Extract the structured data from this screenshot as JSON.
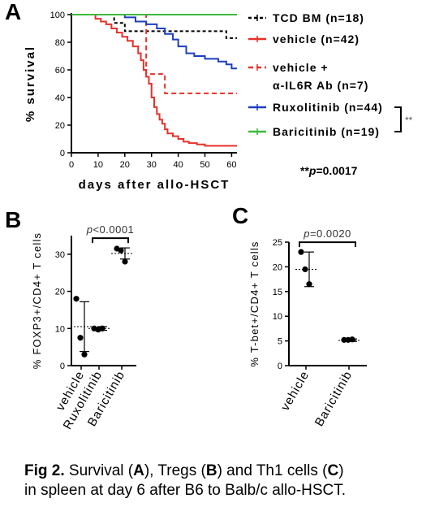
{
  "caption": {
    "fig": "Fig 2.",
    "t1": " Survival (",
    "t2": "), Tregs (",
    "t3": ") and Th1 cells (",
    "t4": ")",
    "line2": "in spleen at day 6 after B6 to Balb/c allo-HSCT."
  },
  "chart_data": [
    {
      "panel": "A",
      "type": "line",
      "step": true,
      "xlabel": "days after allo-HSCT",
      "ylabel": "% survival",
      "xlim": [
        0,
        62
      ],
      "ylim": [
        0,
        100
      ],
      "xticks": [
        0,
        10,
        20,
        30,
        40,
        50,
        60
      ],
      "yticks": [
        0,
        20,
        40,
        60,
        80,
        100
      ],
      "significance": {
        "label": "**",
        "note": "**p=0.0017"
      },
      "series": [
        {
          "name": "TCD BM (n=18)",
          "color": "#000000",
          "dash": "4,3",
          "x": [
            0,
            16,
            16,
            20,
            20,
            32,
            32,
            58,
            58,
            62
          ],
          "y": [
            100,
            100,
            94,
            94,
            88,
            88,
            88,
            88,
            83,
            83
          ]
        },
        {
          "name": "vehicle (n=42)",
          "color": "#e8302a",
          "dash": "",
          "x": [
            0,
            9,
            11,
            13,
            15,
            17,
            19,
            21,
            23,
            25,
            26,
            27,
            28,
            29,
            30,
            31,
            32,
            33,
            34,
            35,
            36,
            38,
            40,
            42,
            44,
            47,
            50,
            55,
            60,
            62
          ],
          "y": [
            100,
            97,
            95,
            93,
            90,
            87,
            84,
            81,
            77,
            72,
            67,
            60,
            55,
            50,
            40,
            33,
            28,
            24,
            21,
            17,
            14,
            12,
            10,
            8,
            7,
            6,
            5,
            5,
            5,
            5
          ]
        },
        {
          "name": "vehicle + α-IL6R Ab (n=7)",
          "color": "#e8302a",
          "dash": "6,4",
          "x": [
            0,
            28,
            28,
            35,
            35,
            62
          ],
          "y": [
            100,
            100,
            57,
            57,
            43,
            43
          ]
        },
        {
          "name": "Ruxolitinib (n=44)",
          "color": "#1f3fbf",
          "dash": "",
          "x": [
            0,
            20,
            24,
            28,
            32,
            35,
            38,
            40,
            43,
            46,
            50,
            55,
            58,
            60,
            62
          ],
          "y": [
            100,
            98,
            95,
            93,
            90,
            86,
            82,
            77,
            72,
            70,
            68,
            66,
            64,
            61,
            61
          ]
        },
        {
          "name": "Baricitinib (n=19)",
          "color": "#3cb93c",
          "dash": "",
          "x": [
            0,
            62
          ],
          "y": [
            100,
            100
          ]
        }
      ]
    },
    {
      "panel": "B",
      "type": "scatter",
      "ylabel": "% FOXP3+/CD4+ T cells",
      "ylim": [
        0,
        35
      ],
      "yticks": [
        0,
        10,
        20,
        30
      ],
      "categories": [
        "vehicle",
        "Ruxolitinib",
        "Baricitinib"
      ],
      "points": [
        [
          18,
          7.5,
          3
        ],
        [
          10,
          9.7,
          10
        ],
        [
          31.5,
          31,
          28
        ]
      ],
      "means": [
        10.5,
        10,
        30.2
      ],
      "sd_upper": [
        17.2,
        10.5,
        31.7
      ],
      "sd_lower": [
        3.8,
        9.5,
        28.7
      ],
      "comparison": {
        "from": 1,
        "to": 2,
        "label": "p<0.0001"
      }
    },
    {
      "panel": "C",
      "type": "scatter",
      "ylabel": "% T-bet+/CD4+ T cells",
      "ylim": [
        0,
        25
      ],
      "yticks": [
        0,
        5,
        10,
        15,
        20,
        25
      ],
      "categories": [
        "vehicle",
        "Baricitinib"
      ],
      "points": [
        [
          23,
          19.5,
          16.5
        ],
        [
          5.2,
          5.2,
          5.3
        ]
      ],
      "means": [
        19.5,
        5.1
      ],
      "sd_upper": [
        23,
        5.4
      ],
      "sd_lower": [
        16,
        4.9
      ],
      "comparison": {
        "from": 0,
        "to": 1,
        "label": "p=0.0020"
      }
    }
  ],
  "panels": {
    "a": "A",
    "b": "B",
    "c": "C"
  }
}
